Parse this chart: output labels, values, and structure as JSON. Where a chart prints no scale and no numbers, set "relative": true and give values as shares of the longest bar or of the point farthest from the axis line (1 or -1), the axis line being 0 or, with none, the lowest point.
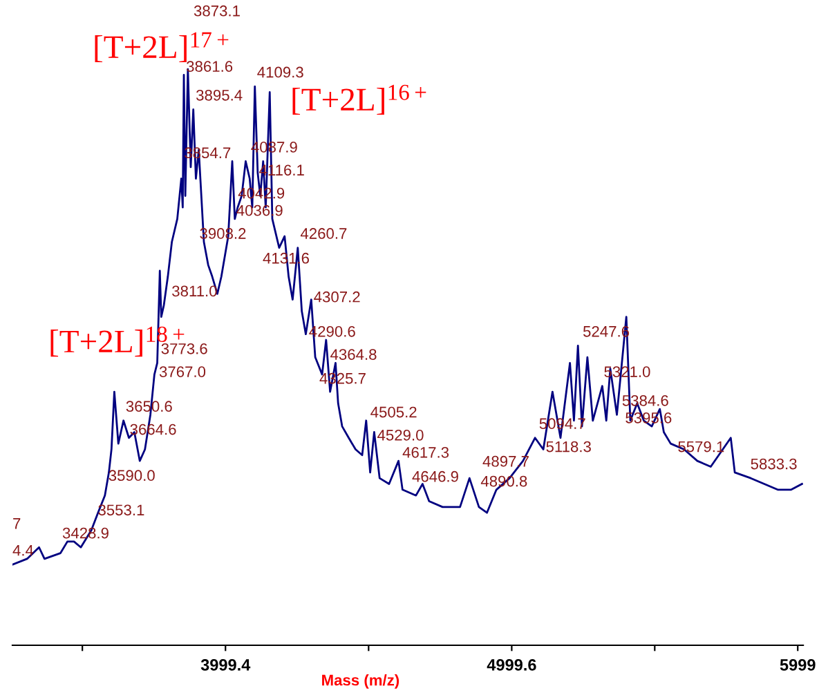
{
  "chart_data": {
    "type": "line",
    "relative": true,
    "xlabel": "Mass (m/z)",
    "tick_labels": "x",
    "xlim": [
      3255,
      6018
    ],
    "xticks": [
      {
        "value": 3499.3,
        "label": null
      },
      3999.4,
      {
        "value": 4499.5,
        "label": null
      },
      4999.6,
      {
        "value": 5499.3,
        "label": null
      },
      5999
    ],
    "series": [
      {
        "color": "#000080",
        "x": [
          3255,
          3306,
          3348,
          3367,
          3423,
          3447,
          3470,
          3494,
          3531,
          3554,
          3578,
          3592,
          3601,
          3611,
          3625,
          3643,
          3662,
          3681,
          3700,
          3718,
          3737,
          3751,
          3761,
          3770,
          3775,
          3784,
          3798,
          3812,
          3831,
          3845,
          3850,
          3854,
          3859,
          3868,
          3878,
          3887,
          3896,
          3906,
          3915,
          3924,
          3939,
          3953,
          3971,
          3985,
          4009,
          4023,
          4032,
          4042,
          4056,
          4070,
          4084,
          4093,
          4102,
          4112,
          4121,
          4131,
          4140,
          4154,
          4163,
          4187,
          4206,
          4220,
          4234,
          4252,
          4266,
          4280,
          4299,
          4313,
          4337,
          4351,
          4365,
          4384,
          4393,
          4407,
          4430,
          4454,
          4477,
          4491,
          4505,
          4519,
          4538,
          4571,
          4604,
          4618,
          4665,
          4688,
          4711,
          4758,
          4786,
          4819,
          4852,
          4885,
          4913,
          4946,
          4992,
          5039,
          5081,
          5110,
          5142,
          5170,
          5203,
          5217,
          5231,
          5245,
          5264,
          5283,
          5316,
          5330,
          5344,
          5367,
          5400,
          5414,
          5438,
          5461,
          5489,
          5517,
          5531,
          5555,
          5602,
          5648,
          5695,
          5765,
          5779,
          5835,
          5882,
          5929,
          5976,
          6014
        ],
        "values": [
          0.14,
          0.15,
          0.17,
          0.15,
          0.16,
          0.18,
          0.18,
          0.17,
          0.2,
          0.23,
          0.26,
          0.3,
          0.34,
          0.44,
          0.35,
          0.39,
          0.36,
          0.37,
          0.32,
          0.34,
          0.4,
          0.47,
          0.49,
          0.65,
          0.57,
          0.59,
          0.64,
          0.7,
          0.74,
          0.81,
          0.76,
          0.99,
          0.78,
          1.0,
          0.83,
          0.93,
          0.81,
          0.86,
          0.78,
          0.7,
          0.66,
          0.64,
          0.61,
          0.64,
          0.71,
          0.84,
          0.74,
          0.76,
          0.78,
          0.84,
          0.81,
          0.76,
          0.97,
          0.82,
          0.78,
          0.84,
          0.76,
          0.96,
          0.74,
          0.69,
          0.71,
          0.64,
          0.6,
          0.69,
          0.58,
          0.54,
          0.6,
          0.5,
          0.47,
          0.53,
          0.44,
          0.49,
          0.42,
          0.38,
          0.36,
          0.34,
          0.33,
          0.39,
          0.3,
          0.37,
          0.29,
          0.28,
          0.32,
          0.27,
          0.26,
          0.28,
          0.25,
          0.24,
          0.24,
          0.24,
          0.29,
          0.24,
          0.23,
          0.27,
          0.29,
          0.32,
          0.36,
          0.34,
          0.44,
          0.36,
          0.49,
          0.39,
          0.52,
          0.38,
          0.5,
          0.39,
          0.45,
          0.39,
          0.48,
          0.4,
          0.57,
          0.39,
          0.42,
          0.39,
          0.38,
          0.41,
          0.37,
          0.35,
          0.34,
          0.32,
          0.31,
          0.36,
          0.3,
          0.29,
          0.28,
          0.27,
          0.27,
          0.28
        ]
      }
    ],
    "annotations": [
      {
        "text": "3861.6",
        "x": 3861.6,
        "y": 0.99
      },
      {
        "text": "3895.4",
        "x": 3895.4,
        "y": 0.94
      },
      {
        "text": "3854.7",
        "x": 3854.7,
        "y": 0.84
      },
      {
        "text": "4109.3",
        "x": 4109.3,
        "y": 0.98
      },
      {
        "text": "4087.9",
        "x": 4087.9,
        "y": 0.85
      },
      {
        "text": "4116.1",
        "x": 4116.1,
        "y": 0.81
      },
      {
        "text": "4042.9",
        "x": 4042.9,
        "y": 0.77
      },
      {
        "text": "4036.9",
        "x": 4036.9,
        "y": 0.74
      },
      {
        "text": "3908.2",
        "x": 3908.2,
        "y": 0.7
      },
      {
        "text": "4260.7",
        "x": 4260.7,
        "y": 0.7
      },
      {
        "text": "3811.0",
        "x": 3811.0,
        "y": 0.6
      },
      {
        "text": "4307.2",
        "x": 4307.2,
        "y": 0.59
      },
      {
        "text": "4290.6",
        "x": 4290.6,
        "y": 0.53
      },
      {
        "text": "4364.8",
        "x": 4364.8,
        "y": 0.49
      },
      {
        "text": "4505.2",
        "x": 4505.2,
        "y": 0.39
      },
      {
        "text": "4529.0",
        "x": 4529.0,
        "y": 0.35
      },
      {
        "text": "4617.3",
        "x": 4617.3,
        "y": 0.32
      },
      {
        "text": "4890.8",
        "x": 4890.8,
        "y": 0.27
      },
      {
        "text": "5094.7",
        "x": 5094.7,
        "y": 0.37
      },
      {
        "text": "5118.3",
        "x": 5118.3,
        "y": 0.33
      },
      {
        "text": "5247.6",
        "x": 5247.6,
        "y": 0.53
      },
      {
        "text": "5321.0",
        "x": 5321.0,
        "y": 0.46
      },
      {
        "text": "5384.6",
        "x": 5384.6,
        "y": 0.41
      },
      {
        "text": "5395.6",
        "x": 5395.6,
        "y": 0.38
      },
      {
        "text": "5579.1",
        "x": 5579.1,
        "y": 0.33
      },
      {
        "text": "5833.3",
        "x": 5833.3,
        "y": 0.3
      },
      {
        "text": "3773.6",
        "x": 3773.6,
        "y": 0.5
      },
      {
        "text": "3767.0",
        "x": 3767.0,
        "y": 0.46
      },
      {
        "text": "3650.6",
        "x": 3650.6,
        "y": 0.4
      },
      {
        "text": "3664.6",
        "x": 3664.6,
        "y": 0.36
      },
      {
        "text": "3590.0",
        "x": 3590.0,
        "y": 0.28
      },
      {
        "text": "3553.1",
        "x": 3553.1,
        "y": 0.22
      },
      {
        "text": "3428.9",
        "x": 3428.9,
        "y": 0.18
      },
      {
        "text": "4.4",
        "x": 3255,
        "y": 0.15
      },
      "[T+2L]$^{17+}$",
      "[T+2L]$^{16+}$",
      "[T+2L]$^{18+}$",
      "3873.1",
      "4131.6",
      "4325.7",
      "4646.9",
      "4897.7",
      "7"
    ]
  }
}
